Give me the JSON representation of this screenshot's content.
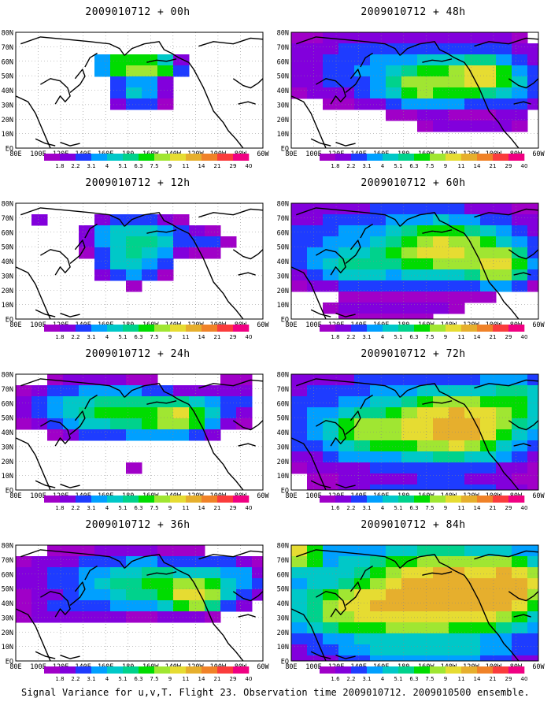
{
  "palette": [
    "#a000c8",
    "#8200dc",
    "#1e3cff",
    "#00a0ff",
    "#00c8c8",
    "#00d28c",
    "#00dc00",
    "#a0e632",
    "#e6dc32",
    "#e6af2d",
    "#f08228",
    "#fa3c3c",
    "#f00082"
  ],
  "chart_data": [
    {
      "type": "heatmap",
      "title": "2009010712 + 00h",
      "lat_ticks": [
        "80N",
        "70N",
        "60N",
        "50N",
        "40N",
        "30N",
        "20N",
        "10N",
        "EQ"
      ],
      "lon_ticks": [
        "80E",
        "100E",
        "120E",
        "140E",
        "160E",
        "180",
        "160W",
        "140W",
        "120W",
        "100W",
        "80W",
        "60W"
      ],
      "colorbar_labels": [
        "1.8",
        "2.2",
        "3.1",
        "4",
        "5.1",
        "6.3",
        "7.5",
        "9",
        "11",
        "14",
        "21",
        "29",
        "40"
      ]
    },
    {
      "type": "heatmap",
      "title": "2009010712 + 12h",
      "lat_ticks": [
        "80N",
        "70N",
        "60N",
        "50N",
        "40N",
        "30N",
        "20N",
        "10N",
        "EQ"
      ],
      "lon_ticks": [
        "80E",
        "100E",
        "120E",
        "140E",
        "160E",
        "180",
        "160W",
        "140W",
        "120W",
        "100W",
        "80W",
        "60W"
      ],
      "colorbar_labels": [
        "1.8",
        "2.2",
        "3.1",
        "4",
        "5.1",
        "6.3",
        "7.5",
        "9",
        "11",
        "14",
        "21",
        "29",
        "40"
      ]
    },
    {
      "type": "heatmap",
      "title": "2009010712 + 24h",
      "lat_ticks": [
        "80N",
        "70N",
        "60N",
        "50N",
        "40N",
        "30N",
        "20N",
        "10N",
        "EQ"
      ],
      "lon_ticks": [
        "80E",
        "100E",
        "120E",
        "140E",
        "160E",
        "180",
        "160W",
        "140W",
        "120W",
        "100W",
        "80W",
        "60W"
      ],
      "colorbar_labels": [
        "1.8",
        "2.2",
        "3.1",
        "4",
        "5.1",
        "6.3",
        "7.5",
        "9",
        "11",
        "14",
        "21",
        "29",
        "40"
      ]
    },
    {
      "type": "heatmap",
      "title": "2009010712 + 36h",
      "lat_ticks": [
        "80N",
        "70N",
        "60N",
        "50N",
        "40N",
        "30N",
        "20N",
        "10N",
        "EQ"
      ],
      "lon_ticks": [
        "80E",
        "100E",
        "120E",
        "140E",
        "160E",
        "180",
        "160W",
        "140W",
        "120W",
        "100W",
        "80W",
        "60W"
      ],
      "colorbar_labels": [
        "1.8",
        "2.2",
        "3.1",
        "4",
        "5.1",
        "6.3",
        "7.5",
        "9",
        "11",
        "14",
        "21",
        "29",
        "40"
      ]
    },
    {
      "type": "heatmap",
      "title": "2009010712 + 48h",
      "lat_ticks": [
        "80N",
        "70N",
        "60N",
        "50N",
        "40N",
        "30N",
        "20N",
        "10N",
        "EQ"
      ],
      "lon_ticks": [
        "80E",
        "100E",
        "120E",
        "140E",
        "160E",
        "180",
        "160W",
        "140W",
        "120W",
        "100W",
        "80W",
        "60W"
      ],
      "colorbar_labels": [
        "1.8",
        "2.2",
        "3.1",
        "4",
        "5.1",
        "6.3",
        "7.5",
        "9",
        "11",
        "14",
        "21",
        "29",
        "40"
      ]
    },
    {
      "type": "heatmap",
      "title": "2009010712 + 60h",
      "lat_ticks": [
        "80N",
        "70N",
        "60N",
        "50N",
        "40N",
        "30N",
        "20N",
        "10N",
        "EQ"
      ],
      "lon_ticks": [
        "80E",
        "100E",
        "120E",
        "140E",
        "160E",
        "180",
        "160W",
        "140W",
        "120W",
        "100W",
        "80W",
        "60W"
      ],
      "colorbar_labels": [
        "1.8",
        "2.2",
        "3.1",
        "4",
        "5.1",
        "6.3",
        "7.5",
        "9",
        "11",
        "14",
        "21",
        "29",
        "40"
      ]
    },
    {
      "type": "heatmap",
      "title": "2009010712 + 72h",
      "lat_ticks": [
        "80N",
        "70N",
        "60N",
        "50N",
        "40N",
        "30N",
        "20N",
        "10N",
        "EQ"
      ],
      "lon_ticks": [
        "80E",
        "100E",
        "120E",
        "140E",
        "160E",
        "180",
        "160W",
        "140W",
        "120W",
        "100W",
        "80W",
        "60W"
      ],
      "colorbar_labels": [
        "1.6",
        "2.2",
        "3.1",
        "4",
        "5.1",
        "6.3",
        "7.5",
        "9",
        "11",
        "14",
        "21",
        "29",
        "40"
      ]
    },
    {
      "type": "heatmap",
      "title": "2009010712 + 84h",
      "lat_ticks": [
        "80N",
        "70N",
        "60N",
        "50N",
        "40N",
        "30N",
        "20N",
        "10N",
        "EQ"
      ],
      "lon_ticks": [
        "80E",
        "100E",
        "120E",
        "140E",
        "160E",
        "180",
        "160W",
        "140W",
        "120W",
        "100W",
        "80W",
        "60W"
      ],
      "colorbar_labels": [
        "1.6",
        "2.2",
        "3.1",
        "4",
        "5.1",
        "6.3",
        "7.5",
        "9",
        "11",
        "14",
        "21",
        "29",
        "40"
      ]
    }
  ],
  "caption": "Signal Variance for u,v,T. Flight 23. Observation time 2009010712. 2009010500 ensemble."
}
